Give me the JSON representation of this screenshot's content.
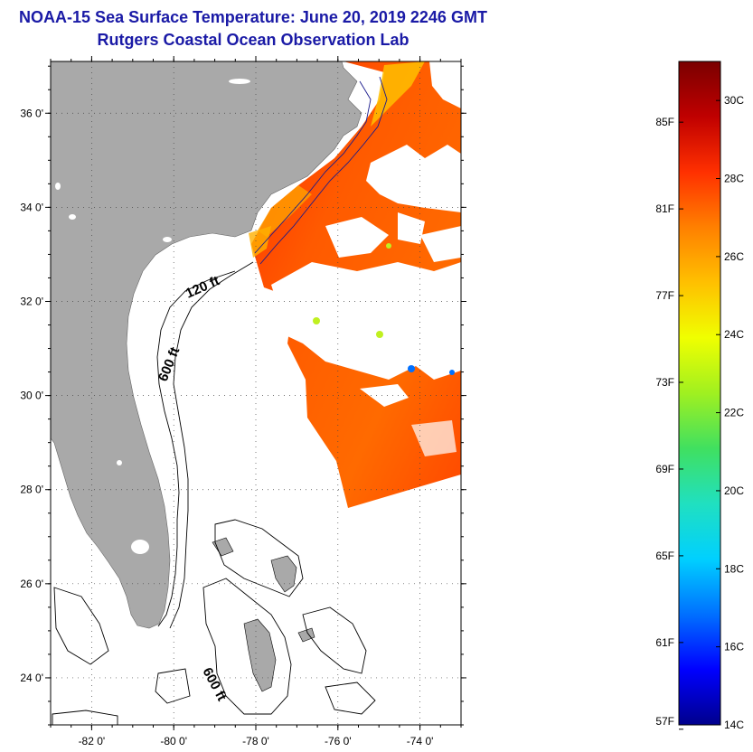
{
  "title": {
    "line1": "NOAA-15 Sea Surface Temperature:  June 20, 2019 2246 GMT",
    "line2": "Rutgers Coastal Ocean Observation Lab"
  },
  "map": {
    "lat_ticks": [
      {
        "value": 36,
        "label": "36 0'"
      },
      {
        "value": 34,
        "label": "34 0'"
      },
      {
        "value": 32,
        "label": "32 0'"
      },
      {
        "value": 30,
        "label": "30 0'"
      },
      {
        "value": 28,
        "label": "28 0'"
      },
      {
        "value": 26,
        "label": "26 0'"
      },
      {
        "value": 24,
        "label": "24 0'"
      }
    ],
    "lon_ticks": [
      {
        "value": -82,
        "label": "-82 0'"
      },
      {
        "value": -80,
        "label": "-80 0'"
      },
      {
        "value": -78,
        "label": "-78 0'"
      },
      {
        "value": -76,
        "label": "-76 0'"
      },
      {
        "value": -74,
        "label": "-74 0'"
      }
    ],
    "lat_range": [
      23,
      37.1
    ],
    "lon_range": [
      -83,
      -73
    ],
    "grid": "dotted",
    "depth_labels": {
      "shelf_120": "120 ft",
      "shelf_600": "600 ft",
      "bahamas_600": "600 ft"
    },
    "colors": {
      "land": "#a9a9a9",
      "ocean_no_data": "#ffffff",
      "contour": "#000000",
      "contour_nc": "#1a1a8c",
      "cloud": "#ffffff"
    }
  },
  "colorbar": {
    "fahrenheit_labels": [
      "85F",
      "81F",
      "77F",
      "73F",
      "69F",
      "65F",
      "61F",
      "57F"
    ],
    "celsius_labels": [
      "30C",
      "28C",
      "26C",
      "24C",
      "22C",
      "20C",
      "18C",
      "16C",
      "14C"
    ],
    "min_c": 14,
    "max_c": 31,
    "orientation": "vertical",
    "position": "right",
    "colors": [
      "#00008c",
      "#0000ff",
      "#0070ff",
      "#00d0ff",
      "#20e0c0",
      "#40e060",
      "#a0f020",
      "#f0ff00",
      "#ffc000",
      "#ff8000",
      "#ff3000",
      "#c00000",
      "#7a0000"
    ]
  }
}
